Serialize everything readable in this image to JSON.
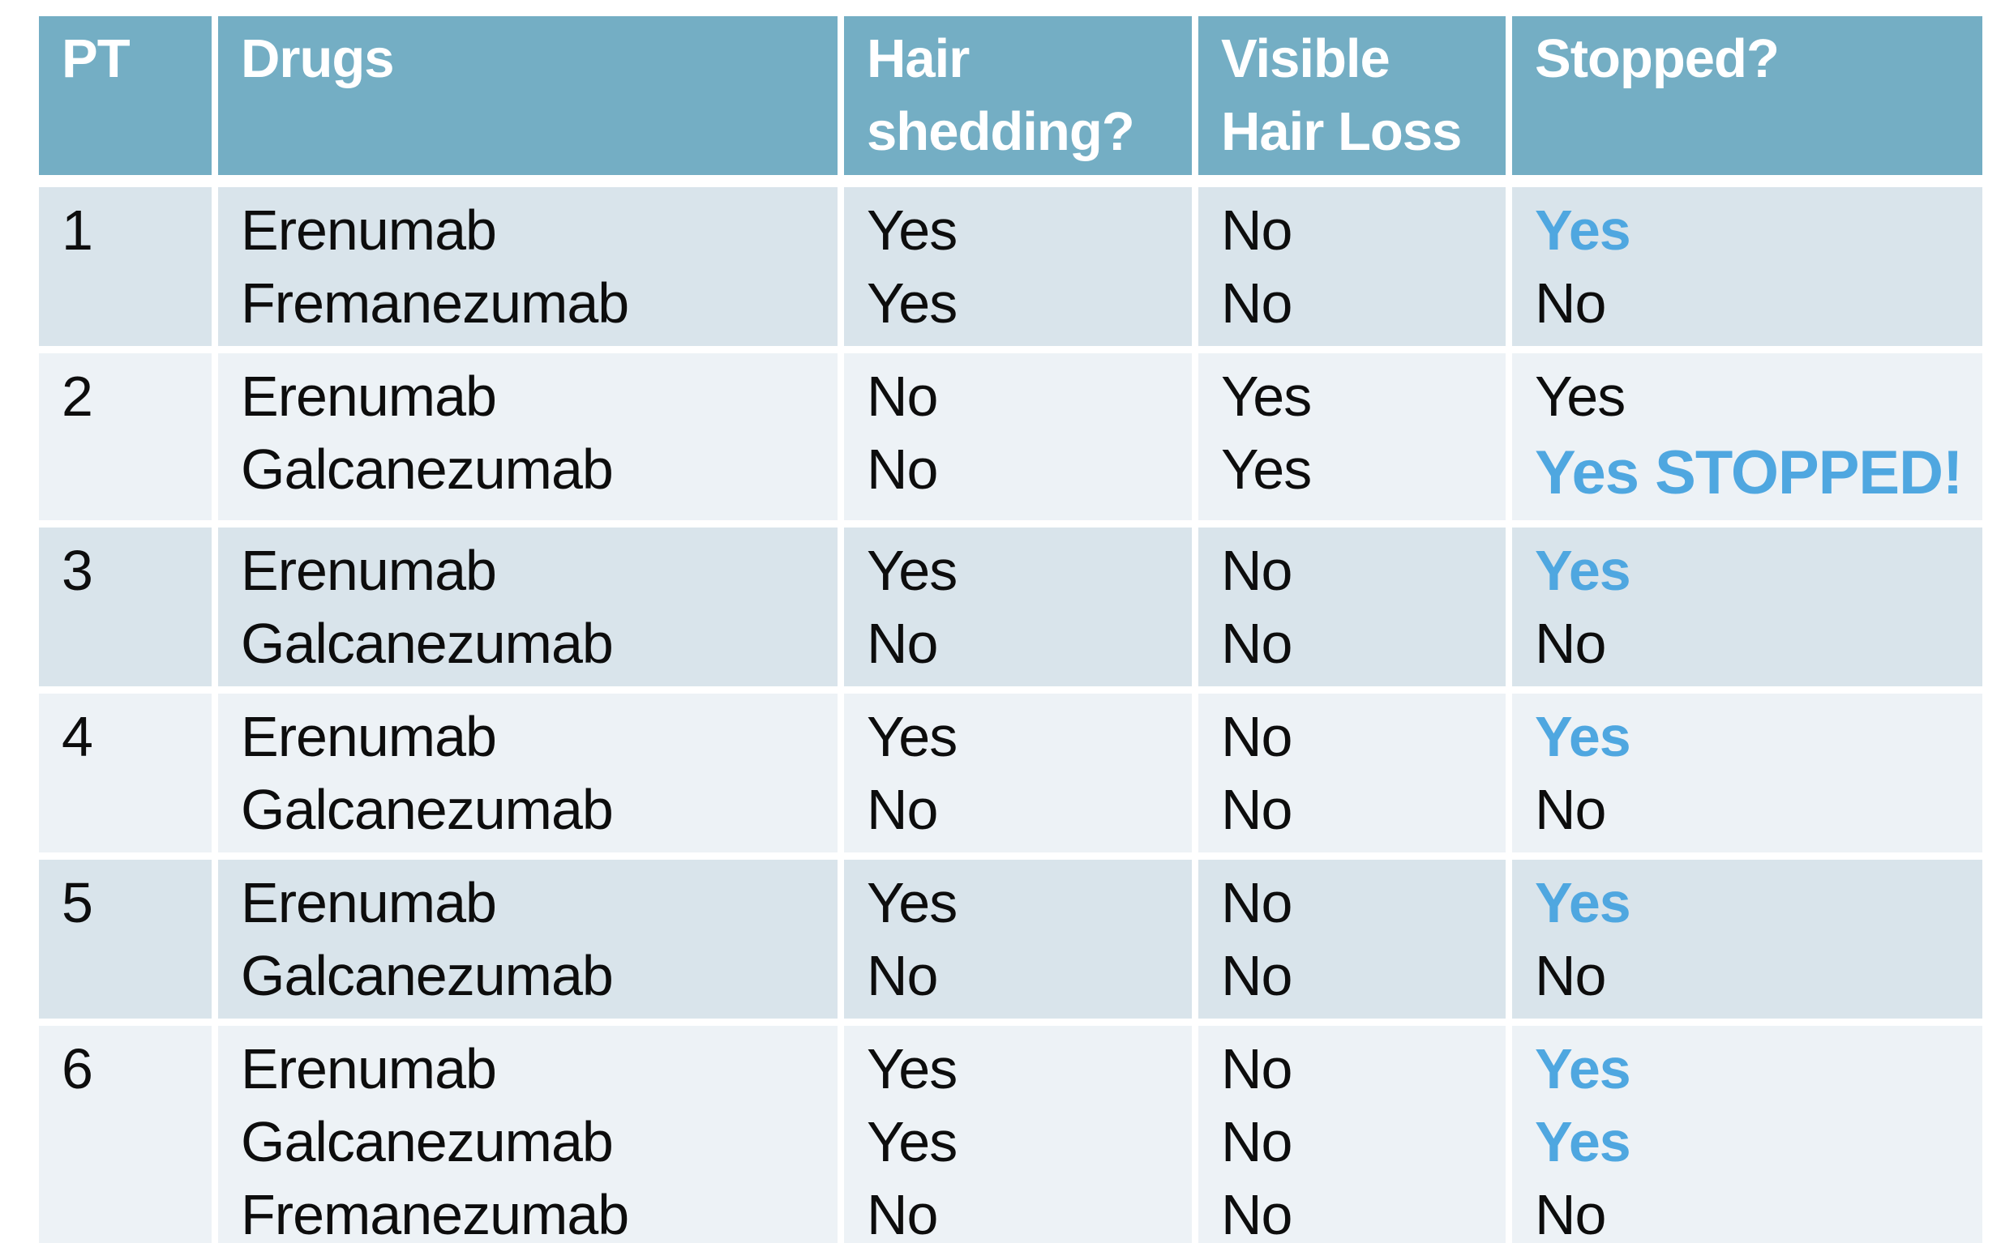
{
  "colors": {
    "page_bg": "#ffffff",
    "divider": "#ffffff",
    "header_bg": "#74aec4",
    "header_text": "#ffffff",
    "row_band_dark": "#d9e4eb",
    "row_band_light": "#edf2f6",
    "body_text": "#0d0d0d",
    "accent_blue": "#4fa7e0"
  },
  "table": {
    "columns": [
      {
        "key": "pt",
        "label": "PT",
        "label_lines": [
          "PT"
        ]
      },
      {
        "key": "drugs",
        "label": "Drugs",
        "label_lines": [
          "Drugs"
        ]
      },
      {
        "key": "shedding",
        "label": "Hair shedding?",
        "label_lines": [
          "Hair",
          "shedding?"
        ]
      },
      {
        "key": "visible",
        "label": "Visible Hair Loss",
        "label_lines": [
          "Visible",
          "Hair Loss"
        ]
      },
      {
        "key": "stopped",
        "label": "Stopped?",
        "label_lines": [
          "Stopped?"
        ]
      }
    ],
    "rows": [
      {
        "pt": "1",
        "drugs": [
          "Erenumab",
          "Fremanezumab"
        ],
        "shedding": [
          "Yes",
          "Yes"
        ],
        "visible": [
          "No",
          "No"
        ],
        "stopped": [
          {
            "text": "Yes",
            "style": "accent"
          },
          {
            "text": "No",
            "style": "normal"
          }
        ]
      },
      {
        "pt": "2",
        "drugs": [
          "Erenumab",
          "Galcanezumab"
        ],
        "shedding": [
          "No",
          "No"
        ],
        "visible": [
          "Yes",
          "Yes"
        ],
        "stopped": [
          {
            "text": "Yes",
            "style": "normal"
          },
          {
            "text": "Yes STOPPED!",
            "style": "accent-large"
          }
        ]
      },
      {
        "pt": "3",
        "drugs": [
          "Erenumab",
          "Galcanezumab"
        ],
        "shedding": [
          "Yes",
          "No"
        ],
        "visible": [
          "No",
          "No"
        ],
        "stopped": [
          {
            "text": "Yes",
            "style": "accent"
          },
          {
            "text": "No",
            "style": "normal"
          }
        ]
      },
      {
        "pt": "4",
        "drugs": [
          "Erenumab",
          "Galcanezumab"
        ],
        "shedding": [
          "Yes",
          "No"
        ],
        "visible": [
          "No",
          "No"
        ],
        "stopped": [
          {
            "text": "Yes",
            "style": "accent"
          },
          {
            "text": "No",
            "style": "normal"
          }
        ]
      },
      {
        "pt": "5",
        "drugs": [
          "Erenumab",
          "Galcanezumab"
        ],
        "shedding": [
          "Yes",
          "No"
        ],
        "visible": [
          "No",
          "No"
        ],
        "stopped": [
          {
            "text": "Yes",
            "style": "accent"
          },
          {
            "text": "No",
            "style": "normal"
          }
        ]
      },
      {
        "pt": "6",
        "drugs": [
          "Erenumab",
          "Galcanezumab",
          "Fremanezumab"
        ],
        "shedding": [
          "Yes",
          "Yes",
          "No"
        ],
        "visible": [
          "No",
          "No",
          "No"
        ],
        "stopped": [
          {
            "text": "Yes",
            "style": "accent"
          },
          {
            "text": "Yes",
            "style": "accent"
          },
          {
            "text": "No",
            "style": "normal"
          }
        ]
      }
    ]
  }
}
